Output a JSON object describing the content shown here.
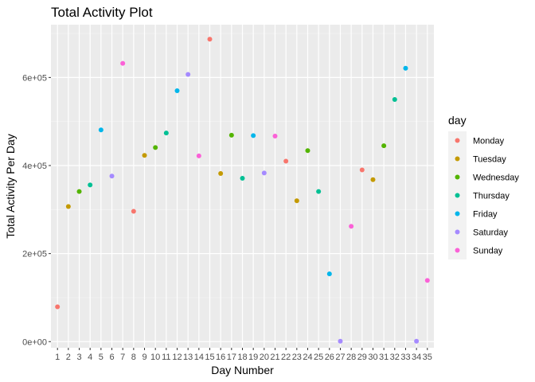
{
  "chart_data": {
    "type": "scatter",
    "title": "Total Activity Plot",
    "xlabel": "Day Number",
    "ylabel": "Total Activity Per Day",
    "xlim": [
      0.4,
      35.6
    ],
    "ylim": [
      -14000,
      720000
    ],
    "x_ticks": [
      1,
      2,
      3,
      4,
      5,
      6,
      7,
      8,
      9,
      10,
      11,
      12,
      13,
      14,
      15,
      16,
      17,
      18,
      19,
      20,
      21,
      22,
      23,
      24,
      25,
      26,
      27,
      28,
      29,
      30,
      31,
      32,
      33,
      34,
      35
    ],
    "x_tick_labels": [
      "1",
      "2",
      "3",
      "4",
      "5",
      "6",
      "7",
      "8",
      "9",
      "10",
      "11",
      "12",
      "13",
      "14",
      "15",
      "16",
      "17",
      "18",
      "19",
      "20",
      "21",
      "22",
      "23",
      "24",
      "25",
      "26",
      "27",
      "28",
      "29",
      "30",
      "31",
      "32",
      "33",
      "34",
      "35"
    ],
    "y_ticks": [
      0,
      200000,
      400000,
      600000
    ],
    "y_tick_labels": [
      "0e+00",
      "2e+05",
      "4e+05",
      "6e+05"
    ],
    "grid": true,
    "legend": {
      "title": "day",
      "position": "right",
      "entries": [
        {
          "name": "Monday",
          "color": "#F8766D"
        },
        {
          "name": "Tuesday",
          "color": "#C49A00"
        },
        {
          "name": "Wednesday",
          "color": "#53B400"
        },
        {
          "name": "Thursday",
          "color": "#00C094"
        },
        {
          "name": "Friday",
          "color": "#00B6EB"
        },
        {
          "name": "Saturday",
          "color": "#A58AFF"
        },
        {
          "name": "Sunday",
          "color": "#FB61D7"
        }
      ]
    },
    "points": [
      {
        "x": 1,
        "y": 79000,
        "day": "Monday"
      },
      {
        "x": 2,
        "y": 307000,
        "day": "Tuesday"
      },
      {
        "x": 3,
        "y": 341000,
        "day": "Wednesday"
      },
      {
        "x": 4,
        "y": 356000,
        "day": "Thursday"
      },
      {
        "x": 5,
        "y": 481000,
        "day": "Friday"
      },
      {
        "x": 6,
        "y": 376000,
        "day": "Saturday"
      },
      {
        "x": 7,
        "y": 632000,
        "day": "Sunday"
      },
      {
        "x": 8,
        "y": 296000,
        "day": "Monday"
      },
      {
        "x": 9,
        "y": 423000,
        "day": "Tuesday"
      },
      {
        "x": 10,
        "y": 441000,
        "day": "Wednesday"
      },
      {
        "x": 11,
        "y": 474000,
        "day": "Thursday"
      },
      {
        "x": 12,
        "y": 570000,
        "day": "Friday"
      },
      {
        "x": 13,
        "y": 607000,
        "day": "Saturday"
      },
      {
        "x": 14,
        "y": 422000,
        "day": "Sunday"
      },
      {
        "x": 15,
        "y": 687000,
        "day": "Monday"
      },
      {
        "x": 16,
        "y": 382000,
        "day": "Tuesday"
      },
      {
        "x": 17,
        "y": 469000,
        "day": "Wednesday"
      },
      {
        "x": 18,
        "y": 371000,
        "day": "Thursday"
      },
      {
        "x": 19,
        "y": 468000,
        "day": "Friday"
      },
      {
        "x": 20,
        "y": 383000,
        "day": "Saturday"
      },
      {
        "x": 21,
        "y": 467000,
        "day": "Sunday"
      },
      {
        "x": 22,
        "y": 410000,
        "day": "Monday"
      },
      {
        "x": 23,
        "y": 320000,
        "day": "Tuesday"
      },
      {
        "x": 24,
        "y": 434000,
        "day": "Wednesday"
      },
      {
        "x": 25,
        "y": 341000,
        "day": "Thursday"
      },
      {
        "x": 26,
        "y": 154000,
        "day": "Friday"
      },
      {
        "x": 27,
        "y": 1000,
        "day": "Saturday"
      },
      {
        "x": 28,
        "y": 262000,
        "day": "Sunday"
      },
      {
        "x": 29,
        "y": 390000,
        "day": "Monday"
      },
      {
        "x": 30,
        "y": 368000,
        "day": "Tuesday"
      },
      {
        "x": 31,
        "y": 445000,
        "day": "Wednesday"
      },
      {
        "x": 32,
        "y": 550000,
        "day": "Thursday"
      },
      {
        "x": 33,
        "y": 621000,
        "day": "Friday"
      },
      {
        "x": 34,
        "y": 1000,
        "day": "Saturday"
      },
      {
        "x": 35,
        "y": 139000,
        "day": "Sunday"
      }
    ]
  }
}
